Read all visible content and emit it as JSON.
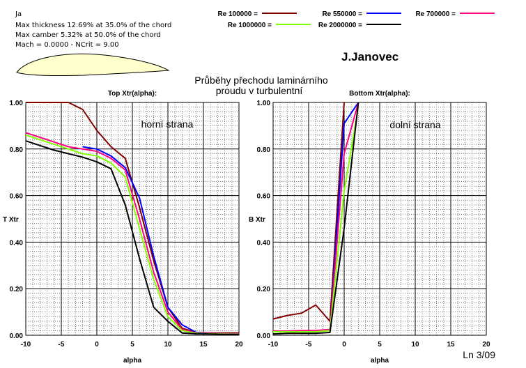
{
  "header": {
    "airfoil_name": "Ja",
    "info_lines": [
      "Max thickness 12.69% at 35.0% of the chord",
      "Max camber 5.32% at 50.0% of the chord",
      "Mach = 0.0000 - NCrit = 9.00"
    ],
    "author": "J.Janovec",
    "title_lines": [
      "Průběhy přechodu laminárního",
      "proudu v turbulentní"
    ],
    "page_label": "Ln 3/09",
    "airfoil_fill_color": "#ffffcc"
  },
  "legend": [
    {
      "label": "Re 100000 =",
      "color": "#800000"
    },
    {
      "label": "Re 550000 =",
      "color": "#0000ff"
    },
    {
      "label": "Re 700000 =",
      "color": "#ff0080"
    },
    {
      "label": "Re 1000000 =",
      "color": "#80ff00"
    },
    {
      "label": "Re 2000000 =",
      "color": "#000000"
    }
  ],
  "chart_data": [
    {
      "type": "line",
      "title": "Top Xtr(alpha):",
      "annotation": "horní strana",
      "xlabel": "alpha",
      "ylabel": "T Xtr",
      "xlim": [
        -10,
        20
      ],
      "ylim": [
        0,
        1
      ],
      "x_ticks": [
        "-10",
        "-5",
        "0",
        "5",
        "10",
        "15",
        "20"
      ],
      "y_ticks": [
        "0.00",
        "0.20",
        "0.40",
        "0.60",
        "0.80",
        "1.00"
      ],
      "grid": true,
      "series": [
        {
          "name": "Re 100000",
          "color": "#800000",
          "x": [
            -10,
            -8,
            -6,
            -4,
            -2,
            0,
            2,
            4,
            6,
            8,
            10,
            12,
            14,
            16,
            18,
            20
          ],
          "y": [
            1.0,
            1.0,
            1.0,
            1.0,
            0.97,
            0.88,
            0.81,
            0.76,
            0.55,
            0.32,
            0.12,
            0.03,
            0.012,
            0.01,
            0.01,
            0.01
          ]
        },
        {
          "name": "Re 550000",
          "color": "#0000ff",
          "x": [
            -2,
            0,
            2,
            4,
            6,
            8,
            10,
            12,
            14,
            16,
            18,
            20
          ],
          "y": [
            0.81,
            0.8,
            0.77,
            0.72,
            0.59,
            0.34,
            0.12,
            0.045,
            0.012,
            0.008,
            0.006,
            0.005
          ]
        },
        {
          "name": "Re 700000",
          "color": "#ff0080",
          "x": [
            -10,
            -8,
            -6,
            -4,
            -2,
            0,
            2,
            4,
            6,
            8,
            10,
            12,
            14,
            16,
            18,
            20
          ],
          "y": [
            0.87,
            0.85,
            0.83,
            0.81,
            0.8,
            0.79,
            0.76,
            0.71,
            0.5,
            0.27,
            0.1,
            0.025,
            0.01,
            0.008,
            0.006,
            0.005
          ]
        },
        {
          "name": "Re 1000000",
          "color": "#80ff00",
          "x": [
            -10,
            -8,
            -6,
            -4,
            -2,
            0,
            2,
            4,
            6,
            8,
            10,
            12,
            14,
            16,
            18,
            20
          ],
          "y": [
            0.86,
            0.84,
            0.82,
            0.8,
            0.78,
            0.77,
            0.74,
            0.68,
            0.46,
            0.24,
            0.08,
            0.02,
            0.008,
            0.006,
            0.005,
            0.004
          ]
        },
        {
          "name": "Re 2000000",
          "color": "#000000",
          "x": [
            -10,
            -8,
            -6,
            -4,
            -2,
            0,
            2,
            4,
            6,
            8,
            10,
            12,
            14,
            16,
            18,
            20
          ],
          "y": [
            0.835,
            0.815,
            0.795,
            0.78,
            0.765,
            0.745,
            0.715,
            0.56,
            0.33,
            0.12,
            0.06,
            0.01,
            0.006,
            0.005,
            0.004,
            0.003
          ]
        }
      ]
    },
    {
      "type": "line",
      "title": "Bottom Xtr(alpha):",
      "annotation": "dolní strana",
      "xlabel": "alpha",
      "ylabel": "B Xtr",
      "xlim": [
        -10,
        20
      ],
      "ylim": [
        0,
        1
      ],
      "x_ticks": [
        "-10",
        "-5",
        "0",
        "5",
        "10",
        "15",
        "20"
      ],
      "y_ticks": [
        "0.00",
        "0.20",
        "0.40",
        "0.60",
        "0.80",
        "1.00"
      ],
      "grid": true,
      "series": [
        {
          "name": "Re 100000",
          "color": "#800000",
          "x": [
            -10,
            -8,
            -6,
            -4,
            -2,
            0,
            0.01
          ],
          "y": [
            0.07,
            0.085,
            0.095,
            0.13,
            0.06,
            1.0,
            1.0
          ]
        },
        {
          "name": "Re 550000",
          "color": "#0000ff",
          "x": [
            -2,
            0,
            2
          ],
          "y": [
            0.02,
            0.91,
            1.0
          ]
        },
        {
          "name": "Re 700000",
          "color": "#ff0080",
          "x": [
            -10,
            -8,
            -6,
            -4,
            -2,
            0,
            2
          ],
          "y": [
            0.018,
            0.018,
            0.02,
            0.02,
            0.025,
            0.78,
            1.0
          ]
        },
        {
          "name": "Re 1000000",
          "color": "#80ff00",
          "x": [
            -10,
            -8,
            -6,
            -4,
            -2,
            0,
            2
          ],
          "y": [
            0.015,
            0.015,
            0.015,
            0.015,
            0.02,
            0.62,
            0.98
          ]
        },
        {
          "name": "Re 2000000",
          "color": "#000000",
          "x": [
            -10,
            -8,
            -6,
            -4,
            -2,
            0,
            2
          ],
          "y": [
            0.005,
            0.008,
            0.008,
            0.008,
            0.012,
            0.46,
            1.0
          ]
        }
      ]
    }
  ]
}
